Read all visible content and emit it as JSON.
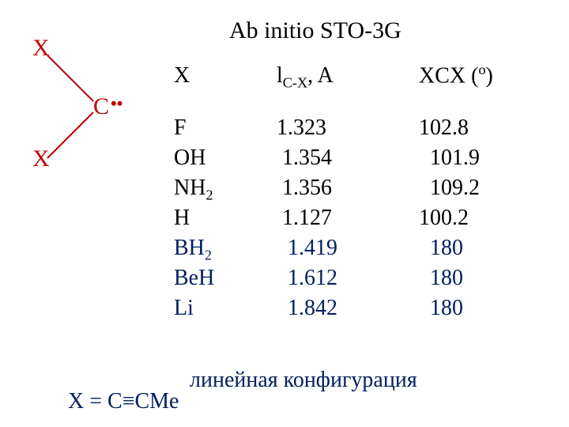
{
  "title": "Ab initio STO-3G",
  "diagram": {
    "atom_center": "C",
    "atom_subst": "X",
    "lone_pair": "••",
    "color": "#c00000"
  },
  "headers": {
    "x": "X",
    "l_prefix": "l",
    "l_sub": "C-X",
    "l_suffix": ", A",
    "angle_prefix": "XCX (",
    "angle_sup": "o",
    "angle_suffix": ")"
  },
  "rows": [
    {
      "x": "F",
      "sub": "",
      "l": "1.323",
      "a": "102.8",
      "blue": false
    },
    {
      "x": "OH",
      "sub": "",
      "l": "1.354",
      "a": "101.9",
      "blue": false
    },
    {
      "x": "NH",
      "sub": "2",
      "l": "1.356",
      "a": "109.2",
      "blue": false
    },
    {
      "x": "H",
      "sub": "",
      "l": "1.127",
      "a": "100.2",
      "blue": false
    },
    {
      "x": "BH",
      "sub": "2",
      "l": "1.419",
      "a": "180",
      "blue": true
    },
    {
      "x": "BeH",
      "sub": "",
      "l": "1.612",
      "a": "180",
      "blue": true
    },
    {
      "x": "Li",
      "sub": "",
      "l": "1.842",
      "a": "180",
      "blue": true
    }
  ],
  "footer_line1": "линейная конфигурация",
  "footer_line2": "X  =  C≡CMe"
}
